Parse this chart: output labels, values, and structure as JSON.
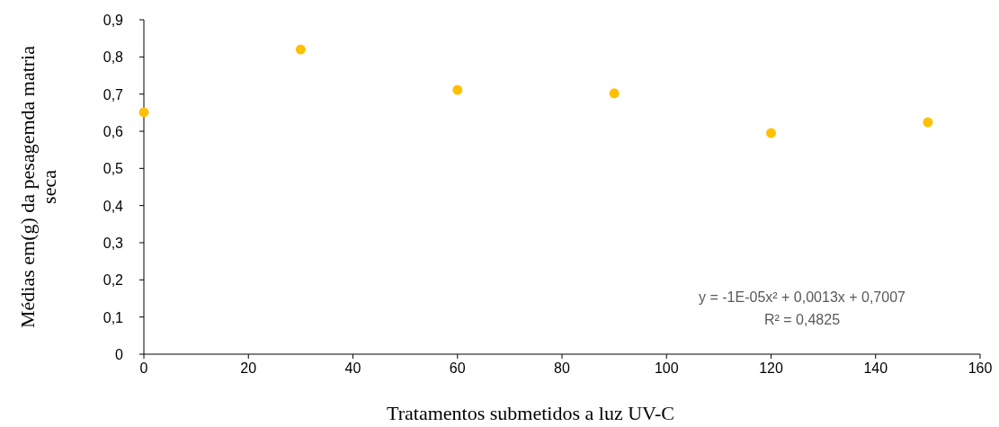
{
  "chart_data": {
    "type": "scatter",
    "xlabel": "Tratamentos submetidos a luz UV-C",
    "ylabel": "Médias  em(g) da pesagemda matria seca",
    "x": [
      0,
      30,
      60,
      90,
      120,
      150
    ],
    "series": [
      {
        "color": "#ffc000",
        "values": [
          0.651,
          0.82,
          0.711,
          0.702,
          0.595,
          0.624
        ]
      }
    ],
    "xlim": [
      0,
      160
    ],
    "xticks": [
      0,
      20,
      40,
      60,
      80,
      100,
      120,
      140,
      160
    ],
    "ylim": [
      0,
      0.9
    ],
    "yticks": [
      0,
      {
        "value": 0.1,
        "label": "0,1"
      },
      {
        "value": 0.2,
        "label": "0,2"
      },
      {
        "value": 0.3,
        "label": "0,3"
      },
      {
        "value": 0.4,
        "label": "0,4"
      },
      {
        "value": 0.5,
        "label": "0,5"
      },
      {
        "value": 0.6,
        "label": "0,6"
      },
      {
        "value": 0.7,
        "label": "0,7"
      },
      {
        "value": 0.8,
        "label": "0,8"
      },
      {
        "value": 0.9,
        "label": "0,9"
      }
    ],
    "grid": false,
    "marker": "circle",
    "annotations": [
      "y = -1E-05x² +  0,0013x + 0,7007",
      "R² = 0,4825"
    ]
  }
}
